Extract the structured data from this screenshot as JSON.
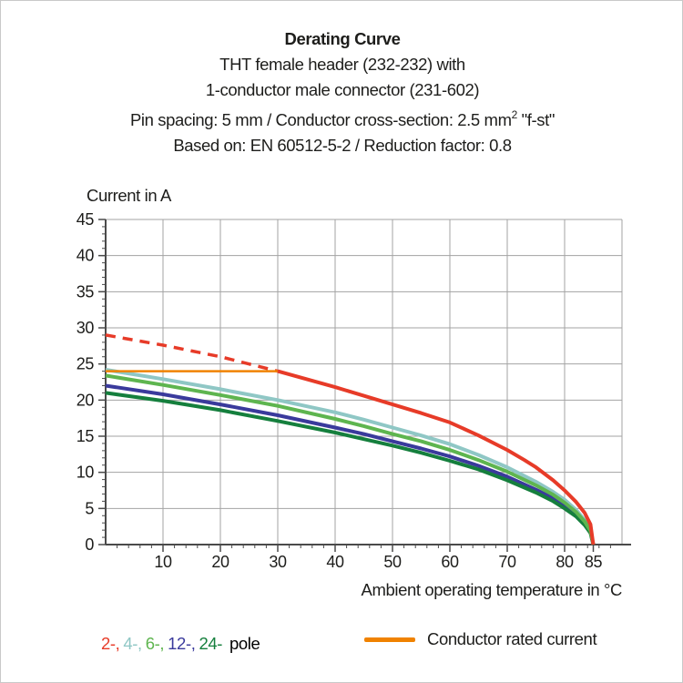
{
  "title": {
    "line1": "Derating Curve",
    "line2": "THT female header (232-232) with",
    "line3": "1-conductor male connector (231-602)",
    "line4_pre": "Pin spacing: 5 mm / Conductor cross-section: 2.5 mm",
    "line4_sup": "2",
    "line4_post": " \"f-st\"",
    "line5": "Based on: EN 60512-5-2 / Reduction factor: 0.8"
  },
  "chart_data": {
    "type": "line",
    "title": "Derating Curve",
    "ylabel": "Current in A",
    "xlabel": "Ambient operating temperature in °C",
    "xlim": [
      0,
      90
    ],
    "ylim": [
      0,
      45
    ],
    "grid": true,
    "x_gridline_step": 10,
    "y_gridline_step": 5,
    "x_minor_tick_step": 2,
    "y_minor_tick_step": 1,
    "x_major_ticks": [
      10,
      20,
      30,
      40,
      50,
      60,
      70,
      80,
      85
    ],
    "x_tick_labels": [
      "10",
      "20",
      "30",
      "40",
      "50",
      "60",
      "70",
      "80",
      "85"
    ],
    "y_major_ticks": [
      0,
      5,
      10,
      15,
      20,
      25,
      30,
      35,
      40,
      45
    ],
    "y_tick_labels": [
      "0",
      "5",
      "10",
      "15",
      "20",
      "25",
      "30",
      "35",
      "40",
      "45"
    ],
    "colors": {
      "pole2": "#e73b28",
      "pole4": "#8fc7c5",
      "pole6": "#5eb54f",
      "pole12": "#3a3a9c",
      "pole24": "#157f3d",
      "rated": "#f08200",
      "grid": "#a3a3a3",
      "axis": "#4a4a4a",
      "text": "#1d1d1b"
    },
    "series": [
      {
        "name": "2-pole (extrapolated)",
        "color": "#e73b28",
        "style": "dashed",
        "width": 3.5,
        "points": [
          [
            0,
            29
          ],
          [
            5,
            28.3
          ],
          [
            10,
            27.6
          ],
          [
            15,
            26.8
          ],
          [
            20,
            26
          ],
          [
            25,
            25
          ],
          [
            30,
            24
          ]
        ]
      },
      {
        "name": "4-pole",
        "color": "#8fc7c5",
        "style": "solid",
        "width": 4,
        "points": [
          [
            0,
            24.2
          ],
          [
            10,
            22.9
          ],
          [
            20,
            21.5
          ],
          [
            30,
            20
          ],
          [
            40,
            18.3
          ],
          [
            45,
            17.3
          ],
          [
            50,
            16.2
          ],
          [
            55,
            15.1
          ],
          [
            60,
            13.9
          ],
          [
            65,
            12.4
          ],
          [
            70,
            10.7
          ],
          [
            75,
            8.7
          ],
          [
            78,
            7.3
          ],
          [
            80,
            6.2
          ],
          [
            82,
            4.8
          ],
          [
            83.5,
            3.4
          ],
          [
            84.5,
            2
          ],
          [
            85,
            0
          ]
        ]
      },
      {
        "name": "12-pole",
        "color": "#3a3a9c",
        "style": "solid",
        "width": 4,
        "points": [
          [
            0,
            22
          ],
          [
            10,
            20.8
          ],
          [
            20,
            19.4
          ],
          [
            30,
            17.9
          ],
          [
            40,
            16.2
          ],
          [
            45,
            15.3
          ],
          [
            50,
            14.3
          ],
          [
            55,
            13.3
          ],
          [
            60,
            12.2
          ],
          [
            65,
            10.9
          ],
          [
            70,
            9.4
          ],
          [
            75,
            7.6
          ],
          [
            78,
            6.4
          ],
          [
            80,
            5.4
          ],
          [
            82,
            4.2
          ],
          [
            83.5,
            2.9
          ],
          [
            84.5,
            1.7
          ],
          [
            85,
            0
          ]
        ]
      },
      {
        "name": "24-pole",
        "color": "#157f3d",
        "style": "solid",
        "width": 4,
        "points": [
          [
            0,
            21
          ],
          [
            10,
            19.9
          ],
          [
            20,
            18.6
          ],
          [
            30,
            17.1
          ],
          [
            40,
            15.5
          ],
          [
            45,
            14.6
          ],
          [
            50,
            13.7
          ],
          [
            55,
            12.7
          ],
          [
            60,
            11.6
          ],
          [
            65,
            10.4
          ],
          [
            70,
            8.9
          ],
          [
            75,
            7.2
          ],
          [
            78,
            6
          ],
          [
            80,
            5
          ],
          [
            82,
            3.9
          ],
          [
            83.5,
            2.7
          ],
          [
            84.5,
            1.6
          ],
          [
            85,
            0
          ]
        ]
      },
      {
        "name": "6-pole",
        "color": "#5eb54f",
        "style": "solid",
        "width": 4,
        "points": [
          [
            0,
            23.4
          ],
          [
            10,
            22.1
          ],
          [
            20,
            20.7
          ],
          [
            30,
            19.2
          ],
          [
            40,
            17.4
          ],
          [
            45,
            16.4
          ],
          [
            50,
            15.3
          ],
          [
            55,
            14.3
          ],
          [
            60,
            13.1
          ],
          [
            65,
            11.7
          ],
          [
            70,
            10.1
          ],
          [
            75,
            8.2
          ],
          [
            78,
            6.9
          ],
          [
            80,
            5.8
          ],
          [
            82,
            4.5
          ],
          [
            83.5,
            3.2
          ],
          [
            84.5,
            1.9
          ],
          [
            85,
            0
          ]
        ]
      },
      {
        "name": "Conductor rated current",
        "color": "#f08200",
        "style": "solid",
        "width": 2.5,
        "points": [
          [
            0,
            24
          ],
          [
            30,
            24
          ]
        ]
      },
      {
        "name": "2-pole",
        "color": "#e73b28",
        "style": "solid",
        "width": 4,
        "points": [
          [
            30,
            24
          ],
          [
            35,
            22.9
          ],
          [
            40,
            21.8
          ],
          [
            45,
            20.6
          ],
          [
            50,
            19.4
          ],
          [
            55,
            18.2
          ],
          [
            60,
            16.9
          ],
          [
            65,
            15.1
          ],
          [
            70,
            13.1
          ],
          [
            73,
            11.7
          ],
          [
            75,
            10.7
          ],
          [
            78,
            8.9
          ],
          [
            80,
            7.5
          ],
          [
            82,
            5.9
          ],
          [
            83.5,
            4.4
          ],
          [
            84.5,
            2.8
          ],
          [
            85,
            0
          ]
        ]
      }
    ]
  },
  "legend": {
    "poles": [
      {
        "label": "2-,",
        "color": "#e73b28"
      },
      {
        "label": "4-,",
        "color": "#8fc7c5"
      },
      {
        "label": "6-,",
        "color": "#5eb54f"
      },
      {
        "label": "12-,",
        "color": "#3a3a9c"
      },
      {
        "label": "24-",
        "color": "#157f3d"
      }
    ],
    "pole_suffix": "pole",
    "rated": {
      "label": "Conductor rated current",
      "color": "#f08200"
    }
  }
}
